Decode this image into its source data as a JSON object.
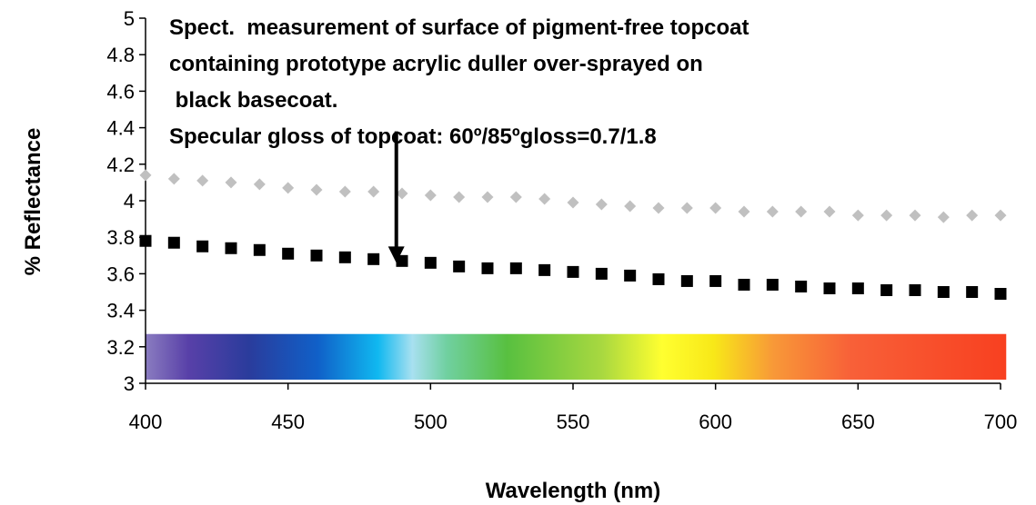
{
  "chart_data": {
    "type": "scatter",
    "title": "",
    "xlabel": "Wavelength (nm)",
    "ylabel": "% Reflectance",
    "xlim": [
      400,
      700
    ],
    "ylim": [
      3,
      5
    ],
    "x_ticks": [
      "400",
      "450",
      "500",
      "550",
      "600",
      "650",
      "700"
    ],
    "y_ticks": [
      "3",
      "3.2",
      "3.4",
      "3.6",
      "3.8",
      "4",
      "4.2",
      "4.4",
      "4.6",
      "4.8",
      "5"
    ],
    "grid": false,
    "legend": "none",
    "annotation_lines": [
      "Spect.  measurement of surface of pigment-free topcoat",
      "containing prototype acrylic duller over-sprayed on",
      " black basecoat.",
      "Specular gloss of topcoat: 60º/85ºgloss=0.7/1.8"
    ],
    "arrow": {
      "x": 488,
      "y_from": 4.38,
      "y_to": 3.66
    },
    "spectrum_band": {
      "x_from": 400,
      "x_to": 702,
      "y_from": 3.02,
      "y_to": 3.27
    },
    "series": [
      {
        "marker": "diamond",
        "color": "#c0c0c0",
        "x": [
          400,
          410,
          420,
          430,
          440,
          450,
          460,
          470,
          480,
          490,
          500,
          510,
          520,
          530,
          540,
          550,
          560,
          570,
          580,
          590,
          600,
          610,
          620,
          630,
          640,
          650,
          660,
          670,
          680,
          690,
          700
        ],
        "values": [
          4.14,
          4.12,
          4.11,
          4.1,
          4.09,
          4.07,
          4.06,
          4.05,
          4.05,
          4.04,
          4.03,
          4.02,
          4.02,
          4.02,
          4.01,
          3.99,
          3.98,
          3.97,
          3.96,
          3.96,
          3.96,
          3.94,
          3.94,
          3.94,
          3.94,
          3.92,
          3.92,
          3.92,
          3.91,
          3.92,
          3.92
        ]
      },
      {
        "marker": "square",
        "color": "#000000",
        "x": [
          400,
          410,
          420,
          430,
          440,
          450,
          460,
          470,
          480,
          490,
          500,
          510,
          520,
          530,
          540,
          550,
          560,
          570,
          580,
          590,
          600,
          610,
          620,
          630,
          640,
          650,
          660,
          670,
          680,
          690,
          700
        ],
        "values": [
          3.78,
          3.77,
          3.75,
          3.74,
          3.73,
          3.71,
          3.7,
          3.69,
          3.68,
          3.67,
          3.66,
          3.64,
          3.63,
          3.63,
          3.62,
          3.61,
          3.6,
          3.59,
          3.57,
          3.56,
          3.56,
          3.54,
          3.54,
          3.53,
          3.52,
          3.52,
          3.51,
          3.51,
          3.5,
          3.5,
          3.49
        ]
      }
    ]
  }
}
